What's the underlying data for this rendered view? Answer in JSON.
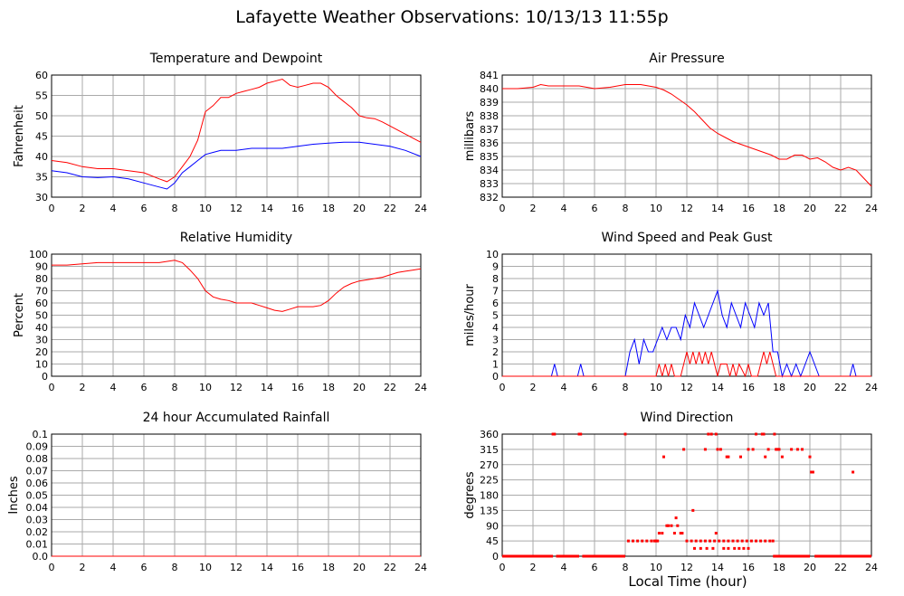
{
  "title": "Lafayette Weather Observations: 10/13/13 11:55p",
  "xaxis_title": "Local Time (hour)",
  "chart_data": [
    {
      "id": "temp",
      "type": "line",
      "title": "Temperature and Dewpoint",
      "ylabel": "Fahrenheit",
      "xlim": [
        0,
        24
      ],
      "ylim": [
        30,
        60
      ],
      "xticks": [
        0,
        2,
        4,
        6,
        8,
        10,
        12,
        14,
        16,
        18,
        20,
        22,
        24
      ],
      "yticks": [
        "30",
        "35",
        "40",
        "45",
        "50",
        "55",
        "60"
      ],
      "grid": true,
      "series": [
        {
          "color": "#ff0000",
          "x": [
            0,
            1,
            2,
            3,
            4,
            5,
            6,
            7,
            7.5,
            8,
            8.5,
            9,
            9.5,
            10,
            10.5,
            11,
            11.5,
            12,
            12.5,
            13,
            13.5,
            14,
            14.5,
            15,
            15.5,
            16,
            16.5,
            17,
            17.5,
            18,
            18.5,
            19,
            19.5,
            20,
            20.5,
            21,
            21.5,
            22,
            22.5,
            23,
            23.5,
            24
          ],
          "y": [
            39,
            38.5,
            37.5,
            37,
            37,
            36.5,
            36,
            34.5,
            33.8,
            35,
            37.5,
            40,
            44,
            51,
            52.5,
            54.5,
            54.5,
            55.5,
            56,
            56.5,
            57,
            58,
            58.5,
            59,
            57.5,
            57,
            57.5,
            58,
            58,
            57,
            55,
            53.5,
            52,
            50,
            49.5,
            49.3,
            48.5,
            47.5,
            46.5,
            45.5,
            44.5,
            43.5
          ]
        },
        {
          "color": "#0000ff",
          "x": [
            0,
            1,
            2,
            3,
            4,
            5,
            6,
            7,
            7.5,
            8,
            8.5,
            9,
            9.5,
            10,
            10.5,
            11,
            12,
            13,
            14,
            15,
            16,
            17,
            18,
            19,
            20,
            21,
            22,
            23,
            24
          ],
          "y": [
            36.5,
            36,
            35,
            34.8,
            35,
            34.5,
            33.5,
            32.5,
            32,
            33.5,
            36,
            37.5,
            39,
            40.5,
            41,
            41.5,
            41.5,
            42,
            42,
            42,
            42.5,
            43,
            43.3,
            43.5,
            43.5,
            43,
            42.5,
            41.5,
            40
          ]
        }
      ]
    },
    {
      "id": "pressure",
      "type": "line",
      "title": "Air Pressure",
      "ylabel": "millibars",
      "xlim": [
        0,
        24
      ],
      "ylim": [
        832,
        841
      ],
      "xticks": [
        0,
        2,
        4,
        6,
        8,
        10,
        12,
        14,
        16,
        18,
        20,
        22,
        24
      ],
      "yticks": [
        "832",
        "833",
        "834",
        "835",
        "836",
        "837",
        "838",
        "839",
        "840",
        "841"
      ],
      "grid": true,
      "series": [
        {
          "color": "#ff0000",
          "x": [
            0,
            1,
            2,
            2.5,
            3,
            4,
            5,
            6,
            7,
            8,
            9,
            10,
            10.5,
            11,
            11.5,
            12,
            12.5,
            13,
            13.5,
            14,
            14.5,
            15,
            15.5,
            16,
            16.5,
            17,
            17.5,
            18,
            18.5,
            19,
            19.5,
            20,
            20.5,
            21,
            21.5,
            22,
            22.5,
            23,
            23.5,
            24
          ],
          "y": [
            840.0,
            840.0,
            840.1,
            840.3,
            840.2,
            840.2,
            840.2,
            840.0,
            840.1,
            840.3,
            840.3,
            840.1,
            839.9,
            839.6,
            839.2,
            838.8,
            838.3,
            837.7,
            837.1,
            836.7,
            836.4,
            836.1,
            835.9,
            835.7,
            835.5,
            835.3,
            835.1,
            834.8,
            834.8,
            835.1,
            835.1,
            834.8,
            834.9,
            834.6,
            834.2,
            834.0,
            834.2,
            834.0,
            833.4,
            832.8
          ]
        }
      ]
    },
    {
      "id": "humidity",
      "type": "line",
      "title": "Relative Humidity",
      "ylabel": "Percent",
      "xlim": [
        0,
        24
      ],
      "ylim": [
        0,
        100
      ],
      "xticks": [
        0,
        2,
        4,
        6,
        8,
        10,
        12,
        14,
        16,
        18,
        20,
        22,
        24
      ],
      "yticks": [
        "0",
        "10",
        "20",
        "30",
        "40",
        "50",
        "60",
        "70",
        "80",
        "90",
        "100"
      ],
      "grid": true,
      "series": [
        {
          "color": "#ff0000",
          "x": [
            0,
            1,
            2,
            3,
            4,
            5,
            6,
            7,
            8,
            8.5,
            9,
            9.5,
            10,
            10.5,
            11,
            11.5,
            12,
            12.5,
            13,
            13.5,
            14,
            14.5,
            15,
            15.5,
            16,
            16.5,
            17,
            17.5,
            18,
            18.5,
            19,
            19.5,
            20,
            20.5,
            21,
            21.5,
            22,
            22.5,
            23,
            23.5,
            24
          ],
          "y": [
            91,
            91,
            92,
            93,
            93,
            93,
            93,
            93,
            95,
            93,
            87,
            80,
            70,
            65,
            63,
            62,
            60,
            60,
            60,
            58,
            56,
            54,
            53,
            55,
            57,
            57,
            57,
            58,
            62,
            68,
            73,
            76,
            78,
            79,
            80,
            81,
            83,
            85,
            86,
            87,
            88
          ]
        }
      ]
    },
    {
      "id": "wind",
      "type": "line",
      "title": "Wind Speed and Peak Gust",
      "ylabel": "miles/hour",
      "xlim": [
        0,
        24
      ],
      "ylim": [
        0,
        10
      ],
      "xticks": [
        0,
        2,
        4,
        6,
        8,
        10,
        12,
        14,
        16,
        18,
        20,
        22,
        24
      ],
      "yticks": [
        "0",
        "1",
        "2",
        "3",
        "4",
        "5",
        "6",
        "7",
        "8",
        "9",
        "10"
      ],
      "grid": true,
      "series": [
        {
          "color": "#0000ff",
          "x": [
            0,
            3.2,
            3.4,
            3.6,
            4.9,
            5.1,
            5.3,
            8.0,
            8.3,
            8.6,
            8.9,
            9.2,
            9.5,
            9.8,
            10.1,
            10.4,
            10.7,
            11.0,
            11.3,
            11.6,
            11.9,
            12.2,
            12.5,
            12.8,
            13.1,
            13.4,
            13.7,
            14.0,
            14.3,
            14.6,
            14.9,
            15.2,
            15.5,
            15.8,
            16.1,
            16.4,
            16.7,
            17.0,
            17.3,
            17.6,
            17.9,
            18.2,
            18.5,
            18.8,
            19.1,
            19.4,
            19.7,
            20.0,
            20.3,
            20.6,
            22.6,
            22.8,
            23.0,
            24
          ],
          "y": [
            0,
            0,
            1,
            0,
            0,
            1,
            0,
            0,
            2,
            3,
            1,
            3,
            2,
            2,
            3,
            4,
            3,
            4,
            4,
            3,
            5,
            4,
            6,
            5,
            4,
            5,
            6,
            7,
            5,
            4,
            6,
            5,
            4,
            6,
            5,
            4,
            6,
            5,
            6,
            2,
            2,
            0,
            1,
            0,
            1,
            0,
            1,
            2,
            1,
            0,
            0,
            1,
            0,
            0
          ]
        },
        {
          "color": "#ff0000",
          "x": [
            0,
            10.0,
            10.2,
            10.4,
            10.6,
            10.8,
            11.0,
            11.2,
            11.6,
            11.8,
            12.0,
            12.2,
            12.4,
            12.6,
            12.8,
            13.0,
            13.2,
            13.4,
            13.6,
            13.8,
            14.0,
            14.2,
            14.6,
            14.8,
            15.0,
            15.2,
            15.4,
            15.8,
            16.0,
            16.2,
            16.6,
            16.8,
            17.0,
            17.2,
            17.4,
            17.6,
            17.8,
            18.0,
            24
          ],
          "y": [
            0,
            0,
            1,
            0,
            1,
            0,
            1,
            0,
            0,
            1,
            2,
            1,
            2,
            1,
            2,
            1,
            2,
            1,
            2,
            1,
            0,
            1,
            1,
            0,
            1,
            0,
            1,
            0,
            1,
            0,
            0,
            1,
            2,
            1,
            2,
            1,
            0,
            0,
            0
          ]
        }
      ]
    },
    {
      "id": "rain",
      "type": "line",
      "title": "24 hour Accumulated Rainfall",
      "ylabel": "Inches",
      "xlim": [
        0,
        24
      ],
      "ylim": [
        0,
        0.1
      ],
      "xticks": [
        0,
        2,
        4,
        6,
        8,
        10,
        12,
        14,
        16,
        18,
        20,
        22,
        24
      ],
      "yticks": [
        "0.0",
        "0.01",
        "0.02",
        "0.03",
        "0.04",
        "0.05",
        "0.06",
        "0.07",
        "0.08",
        "0.09",
        "0.1"
      ],
      "grid": true,
      "series": [
        {
          "color": "#ff0000",
          "x": [
            0,
            24
          ],
          "y": [
            0,
            0
          ]
        }
      ]
    },
    {
      "id": "direction",
      "type": "scatter",
      "title": "Wind Direction",
      "ylabel": "degrees",
      "xlim": [
        0,
        24
      ],
      "ylim": [
        0,
        360
      ],
      "xticks": [
        0,
        2,
        4,
        6,
        8,
        10,
        12,
        14,
        16,
        18,
        20,
        22,
        24
      ],
      "yticks": [
        "0",
        "45",
        "90",
        "135",
        "180",
        "225",
        "270",
        "315",
        "360"
      ],
      "grid": true,
      "series": [
        {
          "color": "#ff0000",
          "x": [
            3.3,
            3.4,
            5.0,
            5.1,
            8.0,
            10.5,
            11.8,
            12.4,
            13.2,
            13.4,
            13.6,
            13.9,
            14.0,
            14.2,
            14.6,
            14.7,
            15.5,
            16.0,
            16.3,
            16.5,
            16.9,
            17.0,
            17.1,
            17.3,
            17.7,
            17.8,
            17.9,
            18.0,
            18.2,
            18.8,
            19.2,
            19.5,
            20.0,
            20.1,
            20.2,
            22.8,
            10.2,
            10.4,
            10.7,
            10.8,
            11.0,
            11.2,
            11.4,
            11.6,
            11.3,
            11.7,
            13.9,
            8.2,
            8.5,
            8.8,
            9.1,
            9.4,
            9.7,
            9.9,
            10.0,
            10.1,
            12.0,
            12.3,
            12.6,
            12.9,
            13.2,
            13.5,
            13.8,
            14.1,
            14.4,
            14.7,
            15.0,
            15.3,
            15.6,
            15.9,
            16.2,
            16.5,
            16.8,
            17.1,
            17.4,
            17.6,
            12.5,
            12.9,
            13.3,
            13.7,
            14.4,
            14.7,
            15.1,
            15.4,
            15.7,
            16.0
          ],
          "y": [
            360,
            360,
            360,
            360,
            360,
            293,
            315,
            135,
            315,
            360,
            360,
            360,
            315,
            315,
            293,
            293,
            293,
            315,
            315,
            360,
            360,
            360,
            293,
            315,
            360,
            315,
            315,
            315,
            293,
            315,
            315,
            315,
            293,
            248,
            248,
            248,
            68,
            68,
            90,
            90,
            90,
            68,
            90,
            68,
            113,
            68,
            68,
            45,
            45,
            45,
            45,
            45,
            45,
            45,
            45,
            45,
            45,
            45,
            45,
            45,
            45,
            45,
            45,
            45,
            45,
            45,
            45,
            45,
            45,
            45,
            45,
            45,
            45,
            45,
            45,
            45,
            23,
            23,
            23,
            23,
            23,
            23,
            23,
            23,
            23,
            23
          ]
        },
        {
          "color": "#ff0000",
          "segment_y": 0,
          "x_ranges": [
            [
              0,
              3.3
            ],
            [
              3.5,
              5.0
            ],
            [
              5.2,
              8.0
            ],
            [
              17.6,
              20.0
            ],
            [
              20.3,
              24
            ]
          ]
        }
      ]
    }
  ]
}
